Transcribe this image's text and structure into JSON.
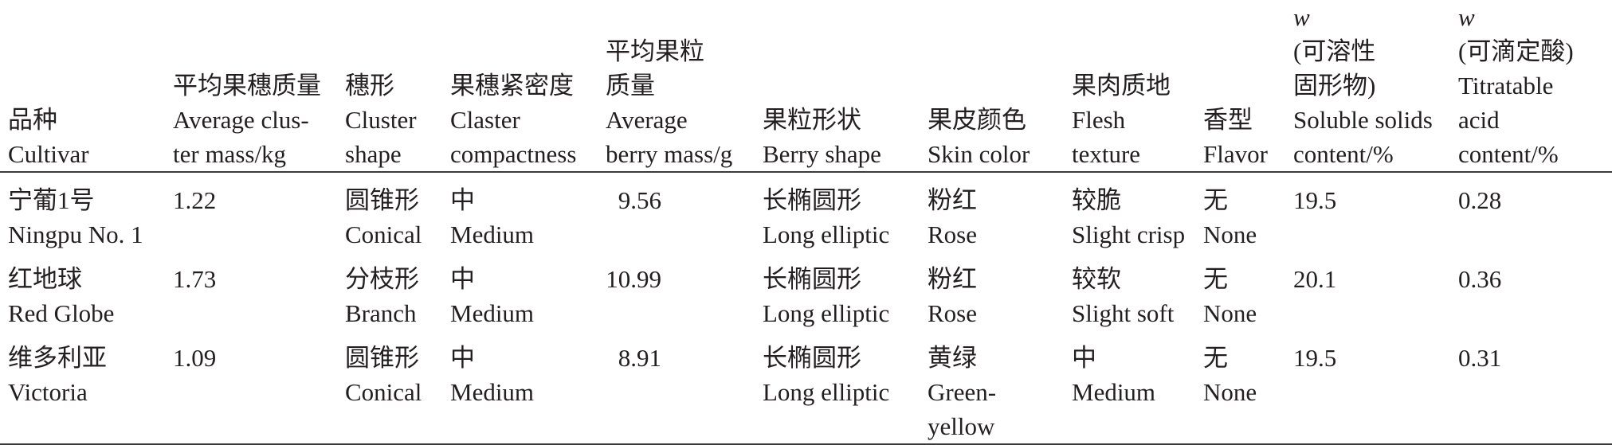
{
  "table": {
    "headers": [
      {
        "zh": "品种",
        "en": [
          "Cultivar"
        ]
      },
      {
        "zh": "平均果穗质量",
        "en": [
          "Average clus-",
          "ter mass/kg"
        ]
      },
      {
        "zh": "穗形",
        "en": [
          "Cluster",
          "shape"
        ]
      },
      {
        "zh": "果穗紧密度",
        "en": [
          "Claster",
          "compactness"
        ]
      },
      {
        "zh": "平均果粒",
        "zh2": "质量",
        "en": [
          "Average",
          "berry mass/g"
        ]
      },
      {
        "zh": "果粒形状",
        "en": [
          "Berry shape"
        ]
      },
      {
        "zh": "果皮颜色",
        "en": [
          "Skin color"
        ]
      },
      {
        "zh": "果肉质地",
        "en": [
          "Flesh",
          "texture"
        ]
      },
      {
        "zh": "香型",
        "en": [
          "Flavor"
        ]
      },
      {
        "var": "w",
        "zh": "(可溶性",
        "zh2": "固形物)",
        "en": [
          "Soluble solids",
          "content/%"
        ]
      },
      {
        "var": "w",
        "zh": "(可滴定酸)",
        "en": [
          "Titratable",
          "acid",
          "content/%"
        ]
      }
    ],
    "rows": [
      {
        "cultivar": [
          "宁葡1号",
          "Ningpu No. 1"
        ],
        "cluster_mass": "1.22",
        "cluster_shape": [
          "圆锥形",
          "Conical"
        ],
        "compactness": [
          "中",
          "Medium"
        ],
        "berry_mass": "9.56",
        "berry_shape": [
          "长椭圆形",
          "Long elliptic"
        ],
        "skin_color": [
          "粉红",
          "Rose"
        ],
        "flesh": [
          "较脆",
          "Slight crisp"
        ],
        "flavor": [
          "无",
          "None"
        ],
        "soluble_solids": "19.5",
        "acid": "0.28"
      },
      {
        "cultivar": [
          "红地球",
          "Red Globe"
        ],
        "cluster_mass": "1.73",
        "cluster_shape": [
          "分枝形",
          "Branch"
        ],
        "compactness": [
          "中",
          "Medium"
        ],
        "berry_mass": "10.99",
        "berry_shape": [
          "长椭圆形",
          "Long elliptic"
        ],
        "skin_color": [
          "粉红",
          "Rose"
        ],
        "flesh": [
          "较软",
          "Slight soft"
        ],
        "flavor": [
          "无",
          "None"
        ],
        "soluble_solids": "20.1",
        "acid": "0.36"
      },
      {
        "cultivar": [
          "维多利亚",
          "Victoria"
        ],
        "cluster_mass": "1.09",
        "cluster_shape": [
          "圆锥形",
          "Conical"
        ],
        "compactness": [
          "中",
          "Medium"
        ],
        "berry_mass": "8.91",
        "berry_shape": [
          "长椭圆形",
          "Long elliptic"
        ],
        "skin_color": [
          "黄绿",
          "Green-",
          "yellow"
        ],
        "flesh": [
          "中",
          "Medium"
        ],
        "flavor": [
          "无",
          "None"
        ],
        "soluble_solids": "19.5",
        "acid": "0.31"
      }
    ]
  }
}
